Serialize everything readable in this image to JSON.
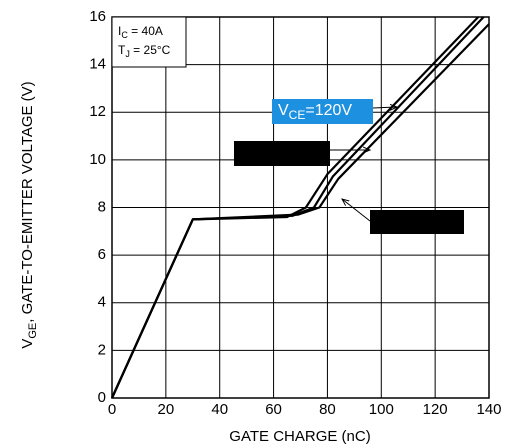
{
  "chart_data": {
    "type": "line",
    "x_label": "GATE CHARGE (nC)",
    "y_label": {
      "main": "V",
      "sub": "GE",
      "rest": ", GATE-TO-EMITTER VOLTAGE (V)"
    },
    "conditions": [
      {
        "main": "I",
        "sub": "C",
        "rest": " = 40A"
      },
      {
        "main": "T",
        "sub": "J",
        "rest": " = 25°C"
      }
    ],
    "annotation": {
      "main": "V",
      "sub": "CE",
      "rest": "=120V"
    },
    "xlim": [
      0,
      140
    ],
    "xticks": [
      0,
      20,
      40,
      60,
      80,
      100,
      120,
      140
    ],
    "ylim": [
      0,
      16
    ],
    "yticks": [
      0,
      2,
      4,
      6,
      8,
      10,
      12,
      14,
      16
    ],
    "grid": true,
    "series": [
      {
        "color": "#000000",
        "x": [
          0,
          30,
          65,
          72,
          80,
          136
        ],
        "values": [
          0,
          7.5,
          7.6,
          8.0,
          9.4,
          16
        ]
      },
      {
        "color": "#000000",
        "x": [
          0,
          30,
          67,
          75,
          82,
          138
        ],
        "values": [
          0,
          7.5,
          7.65,
          8.0,
          9.3,
          16
        ]
      },
      {
        "color": "#000000",
        "x": [
          0,
          30,
          69,
          77,
          84,
          140
        ],
        "values": [
          0,
          7.5,
          7.7,
          8.0,
          9.2,
          15.7
        ]
      }
    ]
  }
}
